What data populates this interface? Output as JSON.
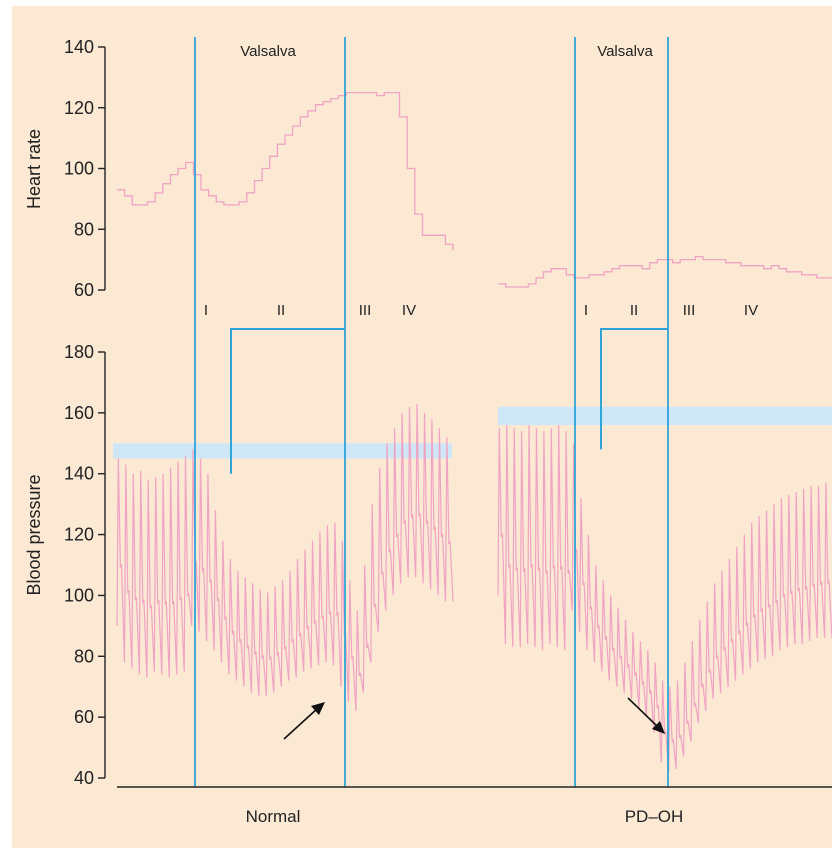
{
  "colors": {
    "background": "#fbe9d4",
    "trace": "#f0a3c3",
    "marker_line": "#2ea4d9",
    "band": "#cfe6f6",
    "axis": "#222222",
    "arrow": "#111111"
  },
  "chart_data": [
    {
      "type": "line",
      "name": "heart-rate-panel",
      "ylabel": "Heart rate",
      "ylim": [
        60,
        140
      ],
      "yticks": [
        "140",
        "120",
        "100",
        "80",
        "60"
      ],
      "series": [
        {
          "group": "normal",
          "x": [
            0,
            1,
            2,
            3,
            4,
            5,
            6,
            7,
            8,
            9,
            10,
            11,
            12,
            13,
            14,
            15,
            16,
            17,
            18,
            19,
            20,
            21,
            22,
            23,
            24,
            25,
            26,
            27,
            28,
            29,
            30,
            31,
            32,
            33,
            34,
            35,
            36,
            37,
            38,
            39,
            40,
            41,
            42,
            43,
            44
          ],
          "values": [
            93,
            91,
            88,
            88,
            89,
            92,
            95,
            98,
            100,
            102,
            98,
            93,
            91,
            89,
            88,
            88,
            89,
            92,
            96,
            100,
            104,
            108,
            111,
            114,
            117,
            119,
            121,
            122,
            123,
            124,
            125,
            125,
            125,
            125,
            124,
            125,
            125,
            117,
            100,
            85,
            78,
            78,
            78,
            75,
            73
          ]
        },
        {
          "group": "pd-oh",
          "x": [
            0,
            1,
            2,
            3,
            4,
            5,
            6,
            7,
            8,
            9,
            10,
            11,
            12,
            13,
            14,
            15,
            16,
            17,
            18,
            19,
            20,
            21,
            22,
            23,
            24,
            25,
            26,
            27,
            28,
            29,
            30,
            31,
            32,
            33,
            34,
            35,
            36,
            37,
            38,
            39,
            40,
            41,
            42,
            43,
            44
          ],
          "values": [
            62,
            61,
            61,
            61,
            62,
            64,
            66,
            67,
            67,
            65,
            64,
            64,
            65,
            65,
            66,
            67,
            68,
            68,
            68,
            67,
            69,
            70,
            70,
            69,
            70,
            70,
            71,
            70,
            70,
            70,
            69,
            69,
            68,
            68,
            68,
            67,
            68,
            67,
            66,
            66,
            65,
            65,
            64,
            64,
            64
          ]
        }
      ],
      "annotations": {
        "maneuver_label": "Valsalva",
        "phase_labels": [
          "I",
          "II",
          "III",
          "IV"
        ]
      }
    },
    {
      "type": "line",
      "name": "blood-pressure-panel",
      "ylabel": "Blood pressure",
      "ylim": [
        40,
        180
      ],
      "yticks": [
        "180",
        "160",
        "140",
        "120",
        "100",
        "80",
        "60",
        "40"
      ],
      "series": [
        {
          "group": "normal",
          "systolic": [
            145,
            143,
            140,
            141,
            138,
            139,
            140,
            142,
            144,
            146,
            148,
            145,
            140,
            128,
            118,
            112,
            108,
            106,
            104,
            102,
            101,
            103,
            105,
            108,
            112,
            115,
            118,
            121,
            123,
            124,
            118,
            105,
            95,
            110,
            130,
            142,
            150,
            155,
            160,
            162,
            163,
            160,
            158,
            155,
            152
          ],
          "diastolic": [
            90,
            78,
            76,
            74,
            73,
            75,
            74,
            73,
            74,
            75,
            90,
            88,
            85,
            82,
            78,
            74,
            72,
            70,
            68,
            67,
            67,
            68,
            70,
            72,
            73,
            75,
            76,
            77,
            78,
            77,
            70,
            65,
            62,
            68,
            78,
            88,
            95,
            100,
            104,
            106,
            106,
            104,
            102,
            100,
            98
          ]
        },
        {
          "group": "pd-oh",
          "systolic": [
            155,
            156,
            155,
            154,
            156,
            155,
            154,
            155,
            156,
            154,
            150,
            132,
            120,
            110,
            105,
            100,
            96,
            92,
            88,
            85,
            82,
            78,
            72,
            70,
            72,
            78,
            85,
            92,
            98,
            104,
            108,
            112,
            116,
            120,
            124,
            126,
            128,
            130,
            132,
            133,
            134,
            135,
            136,
            136,
            137
          ],
          "diastolic": [
            100,
            84,
            83,
            83,
            84,
            83,
            82,
            84,
            83,
            82,
            95,
            88,
            82,
            78,
            75,
            72,
            70,
            68,
            66,
            63,
            60,
            55,
            45,
            42,
            43,
            47,
            52,
            58,
            62,
            66,
            68,
            70,
            72,
            74,
            76,
            78,
            79,
            80,
            82,
            83,
            84,
            84,
            85,
            86,
            86
          ]
        }
      ],
      "reference_band": {
        "normal": [
          145,
          150
        ],
        "pd-oh": [
          156,
          162
        ]
      },
      "phase_marker_level": {
        "normal": 140,
        "pd-oh": 148
      }
    }
  ],
  "group_labels": {
    "normal": "Normal",
    "pd_oh": "PD–OH"
  }
}
